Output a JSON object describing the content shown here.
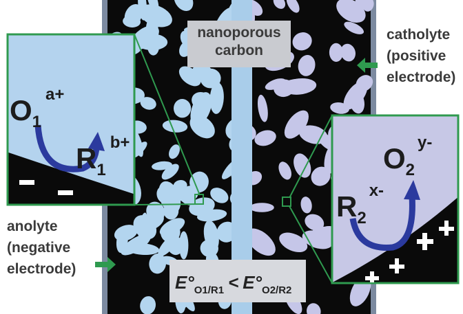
{
  "center_label": {
    "lines": [
      "nanoporous",
      "carbon"
    ]
  },
  "catholyte_label": {
    "lines": [
      "catholyte",
      "(positive",
      "electrode)"
    ]
  },
  "anolyte_label": {
    "lines": [
      "anolyte",
      "(negative",
      "electrode)"
    ]
  },
  "left_inset": {
    "oxidized": {
      "symbol": "O",
      "subscript": "1",
      "charge": "a+"
    },
    "reduced": {
      "symbol": "R",
      "subscript": "1",
      "charge": "b+"
    }
  },
  "right_inset": {
    "reduced": {
      "symbol": "R",
      "subscript": "2",
      "charge": "x-"
    },
    "oxidized": {
      "symbol": "O",
      "subscript": "2",
      "charge": "y-"
    }
  },
  "equation": {
    "left": {
      "symbol": "E°",
      "subscript": "O1/R1"
    },
    "relation": "<",
    "right": {
      "symbol": "E°",
      "subscript": "O2/R2"
    }
  }
}
